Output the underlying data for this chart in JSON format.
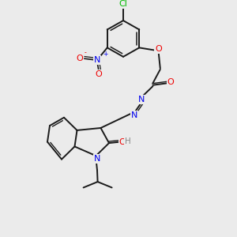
{
  "bg_color": "#ebebeb",
  "bond_color": "#1a1a1a",
  "atom_colors": {
    "Cl": "#00bb00",
    "O": "#ee0000",
    "N": "#0000ee",
    "H": "#888888"
  }
}
